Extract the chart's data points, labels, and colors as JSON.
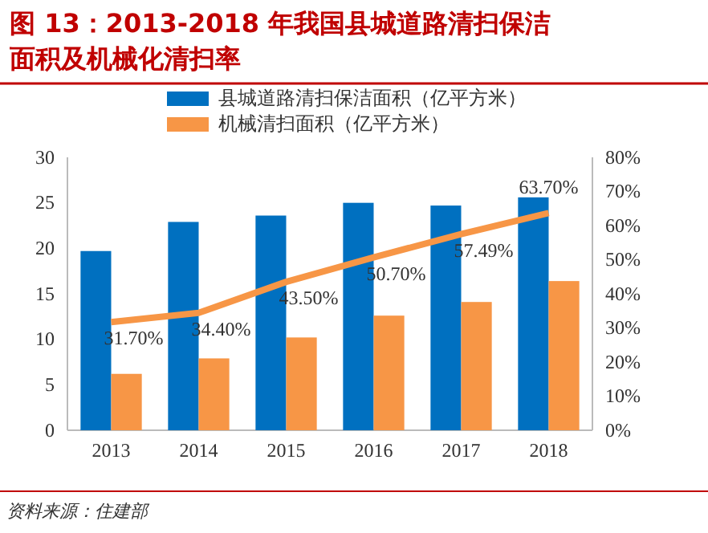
{
  "chart_data": {
    "type": "bar",
    "title": "图 13：2013-2018 年我国县城道路清扫保洁面积及机械化清扫率",
    "categories": [
      "2013",
      "2014",
      "2015",
      "2016",
      "2017",
      "2018"
    ],
    "series": [
      {
        "name": "县城道路清扫保洁面积（亿平方米）",
        "color": "#0070c0",
        "values": [
          19.7,
          22.9,
          23.6,
          25.0,
          24.7,
          25.6
        ]
      },
      {
        "name": "机械清扫面积（亿平方米）",
        "color": "#f79646",
        "values": [
          6.2,
          7.9,
          10.2,
          12.6,
          14.1,
          16.4
        ]
      },
      {
        "type": "line",
        "axis": "y2",
        "color": "#f79646",
        "values": [
          31.7,
          34.4,
          43.5,
          50.7,
          57.49,
          63.7
        ],
        "value_labels": [
          "31.70%",
          "34.40%",
          "43.50%",
          "50.70%",
          "57.49%",
          "63.70%"
        ]
      }
    ],
    "ylim": [
      0,
      30
    ],
    "yticks": [
      0,
      5,
      10,
      15,
      20,
      25,
      30
    ],
    "y2lim": [
      0,
      80
    ],
    "y2ticks": [
      {
        "value": 0,
        "label": "0%"
      },
      {
        "value": 10,
        "label": "10%"
      },
      {
        "value": 20,
        "label": "20%"
      },
      {
        "value": 30,
        "label": "30%"
      },
      {
        "value": 40,
        "label": "40%"
      },
      {
        "value": 50,
        "label": "50%"
      },
      {
        "value": 60,
        "label": "60%"
      },
      {
        "value": 70,
        "label": "70%"
      },
      {
        "value": 80,
        "label": "80%"
      }
    ],
    "legend": "top",
    "marker": "none",
    "annotations": [
      "资料来源：住建部"
    ]
  }
}
